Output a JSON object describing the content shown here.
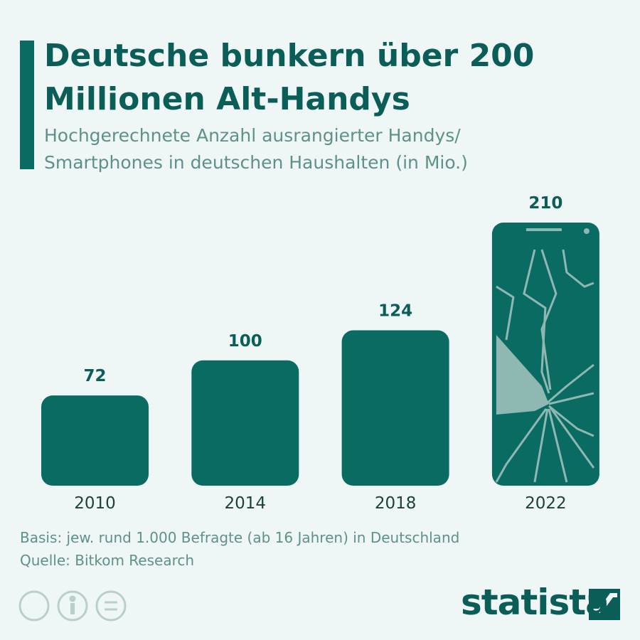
{
  "chart_data": {
    "type": "bar",
    "title": "Deutsche bunkern über 200 Millionen Alt-Handys",
    "subtitle": "Hochgerechnete Anzahl ausrangierter Handys/ Smartphones in deutschen Haushalten (in Mio.)",
    "categories": [
      "2010",
      "2014",
      "2018",
      "2022"
    ],
    "values": [
      72,
      100,
      124,
      210
    ],
    "color": "#0a6b62",
    "notes": [
      "Basis: jew. rund 1.000 Befragte (ab 16 Jahren) in Deutschland",
      "Quelle: Bitkom Research"
    ],
    "logo": "statista"
  }
}
